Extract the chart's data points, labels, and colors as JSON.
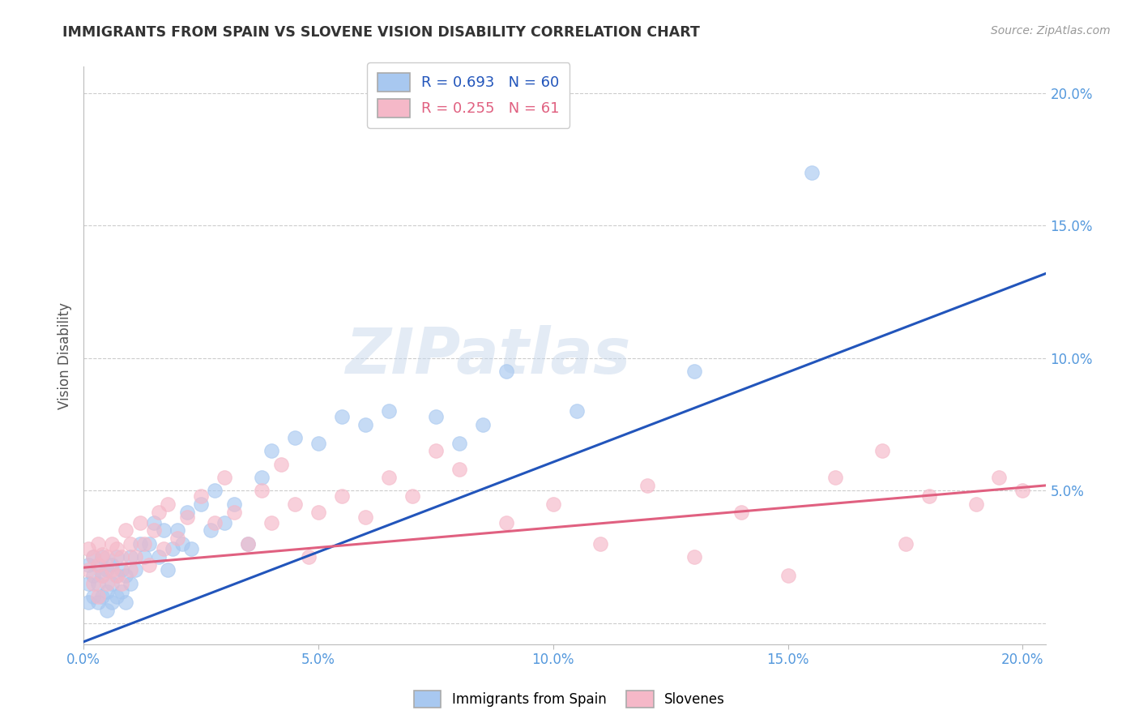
{
  "title": "IMMIGRANTS FROM SPAIN VS SLOVENE VISION DISABILITY CORRELATION CHART",
  "source": "Source: ZipAtlas.com",
  "ylabel": "Vision Disability",
  "legend_labels": [
    "Immigrants from Spain",
    "Slovenes"
  ],
  "blue_R": "0.693",
  "blue_N": "60",
  "pink_R": "0.255",
  "pink_N": "61",
  "blue_color": "#A8C8F0",
  "pink_color": "#F5B8C8",
  "blue_line_color": "#2255BB",
  "pink_line_color": "#E06080",
  "xlim": [
    0.0,
    0.205
  ],
  "ylim": [
    -0.008,
    0.21
  ],
  "xticks": [
    0.0,
    0.05,
    0.1,
    0.15,
    0.2
  ],
  "yticks": [
    0.0,
    0.05,
    0.1,
    0.15,
    0.2
  ],
  "xticklabels": [
    "0.0%",
    "5.0%",
    "10.0%",
    "15.0%",
    "20.0%"
  ],
  "yticklabels": [
    "",
    "5.0%",
    "10.0%",
    "15.0%",
    "20.0%"
  ],
  "watermark": "ZIPatlas",
  "blue_scatter_x": [
    0.001,
    0.001,
    0.001,
    0.002,
    0.002,
    0.002,
    0.003,
    0.003,
    0.003,
    0.004,
    0.004,
    0.004,
    0.005,
    0.005,
    0.005,
    0.006,
    0.006,
    0.006,
    0.007,
    0.007,
    0.007,
    0.008,
    0.008,
    0.009,
    0.009,
    0.01,
    0.01,
    0.011,
    0.012,
    0.013,
    0.014,
    0.015,
    0.016,
    0.017,
    0.018,
    0.019,
    0.02,
    0.021,
    0.022,
    0.023,
    0.025,
    0.027,
    0.028,
    0.03,
    0.032,
    0.035,
    0.038,
    0.04,
    0.045,
    0.05,
    0.055,
    0.06,
    0.065,
    0.075,
    0.08,
    0.085,
    0.09,
    0.105,
    0.13,
    0.155
  ],
  "blue_scatter_y": [
    0.008,
    0.015,
    0.022,
    0.01,
    0.018,
    0.025,
    0.008,
    0.015,
    0.022,
    0.01,
    0.018,
    0.025,
    0.005,
    0.012,
    0.02,
    0.008,
    0.015,
    0.022,
    0.01,
    0.018,
    0.025,
    0.012,
    0.02,
    0.008,
    0.018,
    0.015,
    0.025,
    0.02,
    0.03,
    0.025,
    0.03,
    0.038,
    0.025,
    0.035,
    0.02,
    0.028,
    0.035,
    0.03,
    0.042,
    0.028,
    0.045,
    0.035,
    0.05,
    0.038,
    0.045,
    0.03,
    0.055,
    0.065,
    0.07,
    0.068,
    0.078,
    0.075,
    0.08,
    0.078,
    0.068,
    0.075,
    0.095,
    0.08,
    0.095,
    0.17
  ],
  "pink_scatter_x": [
    0.001,
    0.001,
    0.002,
    0.002,
    0.003,
    0.003,
    0.003,
    0.004,
    0.004,
    0.005,
    0.005,
    0.006,
    0.006,
    0.007,
    0.007,
    0.008,
    0.008,
    0.009,
    0.01,
    0.01,
    0.011,
    0.012,
    0.013,
    0.014,
    0.015,
    0.016,
    0.017,
    0.018,
    0.02,
    0.022,
    0.025,
    0.028,
    0.03,
    0.032,
    0.035,
    0.038,
    0.04,
    0.042,
    0.045,
    0.048,
    0.05,
    0.055,
    0.06,
    0.065,
    0.07,
    0.075,
    0.08,
    0.09,
    0.1,
    0.11,
    0.12,
    0.13,
    0.14,
    0.15,
    0.16,
    0.17,
    0.175,
    0.18,
    0.19,
    0.195,
    0.2
  ],
  "pink_scatter_y": [
    0.02,
    0.028,
    0.015,
    0.025,
    0.01,
    0.022,
    0.03,
    0.018,
    0.026,
    0.015,
    0.025,
    0.02,
    0.03,
    0.018,
    0.028,
    0.015,
    0.025,
    0.035,
    0.02,
    0.03,
    0.025,
    0.038,
    0.03,
    0.022,
    0.035,
    0.042,
    0.028,
    0.045,
    0.032,
    0.04,
    0.048,
    0.038,
    0.055,
    0.042,
    0.03,
    0.05,
    0.038,
    0.06,
    0.045,
    0.025,
    0.042,
    0.048,
    0.04,
    0.055,
    0.048,
    0.065,
    0.058,
    0.038,
    0.045,
    0.03,
    0.052,
    0.025,
    0.042,
    0.018,
    0.055,
    0.065,
    0.03,
    0.048,
    0.045,
    0.055,
    0.05
  ],
  "blue_line_x": [
    0.0,
    0.205
  ],
  "blue_line_y": [
    -0.007,
    0.132
  ],
  "pink_line_x": [
    0.0,
    0.205
  ],
  "pink_line_y": [
    0.021,
    0.052
  ]
}
